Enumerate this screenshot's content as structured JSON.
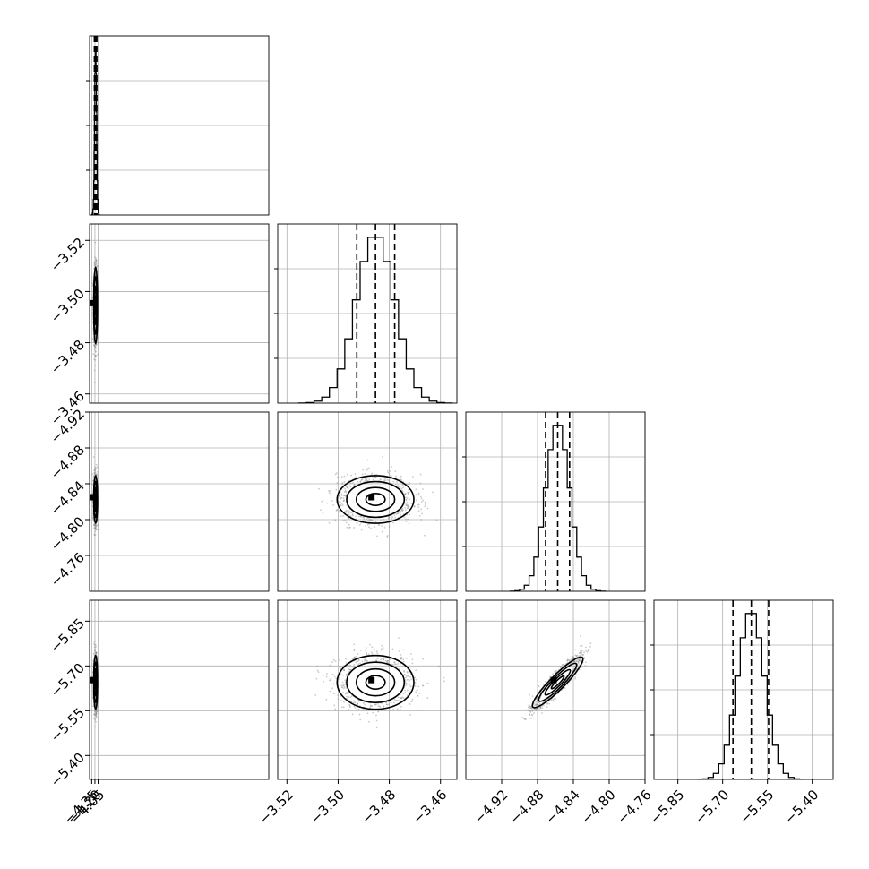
{
  "chart_data": {
    "type": "corner",
    "title": "",
    "n_params": 4,
    "grid": true,
    "colors": {
      "line": "#000000",
      "grid": "#b0b0b0",
      "scatter": "#8a8a8a"
    },
    "params": [
      {
        "range": [
          -4.45,
          3.95
        ],
        "ticks": [
          -4.35,
          -4.2,
          -4.05
        ],
        "tick_labels": [
          "−4.35",
          "−4.20",
          "−4.05"
        ],
        "mean": -4.168,
        "sigma": 0.045,
        "quantiles": [
          -4.225,
          -4.168,
          -4.11
        ]
      },
      {
        "range": [
          -3.5236,
          -3.4536
        ],
        "ticks": [
          -3.52,
          -3.5,
          -3.48,
          -3.46
        ],
        "tick_labels": [
          "−3.52",
          "−3.50",
          "−3.48",
          "−3.46"
        ],
        "mean": -3.4854,
        "sigma": 0.0075,
        "quantiles": [
          -3.4927,
          -3.4854,
          -3.4779
        ]
      },
      {
        "range": [
          -4.96,
          -4.76
        ],
        "ticks": [
          -4.92,
          -4.88,
          -4.84,
          -4.8,
          -4.76
        ],
        "tick_labels": [
          "−4.92",
          "−4.88",
          "−4.84",
          "−4.80",
          "−4.76"
        ],
        "mean": -4.8575,
        "sigma": 0.0133,
        "quantiles": [
          -4.871,
          -4.8575,
          -4.8442
        ]
      },
      {
        "range": [
          -5.93,
          -5.33
        ],
        "ticks": [
          -5.85,
          -5.7,
          -5.55,
          -5.4
        ],
        "tick_labels": [
          "−5.85",
          "−5.70",
          "−5.55",
          "−5.40"
        ],
        "mean": -5.605,
        "sigma": 0.045,
        "quantiles": [
          -5.6655,
          -5.604,
          -5.5462
        ]
      }
    ],
    "y_labels": {
      "1": [
        "−3.46",
        "−3.48",
        "−3.50",
        "−3.52"
      ],
      "2": [
        "−4.76",
        "−4.80",
        "−4.84",
        "−4.88",
        "−4.92"
      ],
      "3": [
        "−5.40",
        "−5.55",
        "−5.70",
        "−5.85"
      ]
    },
    "hist_bins": 20,
    "pairs": [
      {
        "row": 1,
        "col": 0,
        "correlation": 0.0
      },
      {
        "row": 2,
        "col": 0,
        "correlation": 0.0
      },
      {
        "row": 2,
        "col": 1,
        "correlation": 0.0
      },
      {
        "row": 3,
        "col": 0,
        "correlation": 0.0
      },
      {
        "row": 3,
        "col": 1,
        "correlation": 0.0
      },
      {
        "row": 3,
        "col": 2,
        "correlation": 0.92
      }
    ],
    "contour_levels_sigma": [
      0.5,
      1.0,
      1.5,
      2.0
    ]
  }
}
